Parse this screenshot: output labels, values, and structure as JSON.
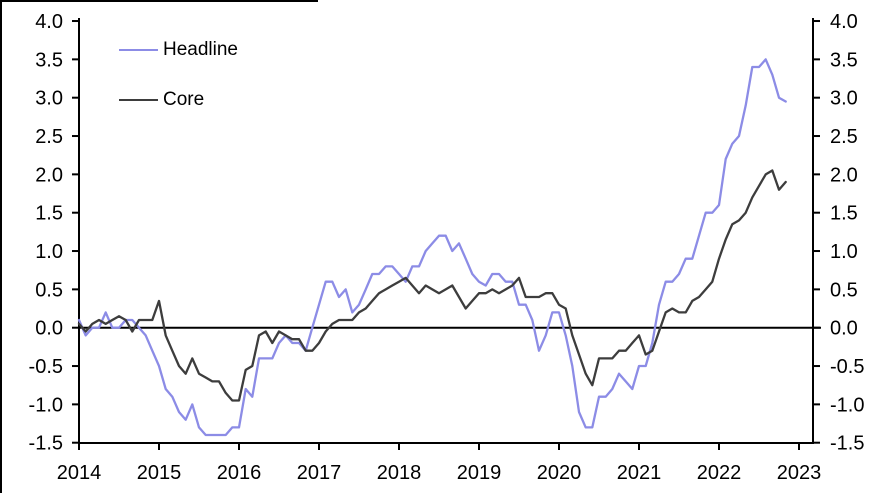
{
  "chart_data": {
    "type": "line",
    "title": "",
    "x_start": "2014-01",
    "x_end": "2022-11",
    "x_frequency": "monthly",
    "x_tick_labels": [
      "2014",
      "2015",
      "2016",
      "2017",
      "2018",
      "2019",
      "2020",
      "2021",
      "2022",
      "2023"
    ],
    "y_ticks": [
      4.0,
      3.5,
      3.0,
      2.5,
      2.0,
      1.5,
      1.0,
      0.5,
      0.0,
      -0.5,
      -1.0,
      -1.5
    ],
    "y_tick_labels": [
      "4.0",
      "3.5",
      "3.0",
      "2.5",
      "2.0",
      "1.5",
      "1.0",
      "0.5",
      "0.0",
      "-0.5",
      "-1.0",
      "-1.5"
    ],
    "ylim": [
      -1.5,
      4.0
    ],
    "grid": false,
    "zero_line": true,
    "y_axis_right_mirror": true,
    "legend_position": "top-left",
    "axis_color": "#000000",
    "series": [
      {
        "name": "Headline",
        "color": "#8c8ce6",
        "values": [
          0.1,
          -0.1,
          0.0,
          0.0,
          0.2,
          0.0,
          0.0,
          0.1,
          0.1,
          0.0,
          -0.1,
          -0.3,
          -0.5,
          -0.8,
          -0.9,
          -1.1,
          -1.2,
          -1.0,
          -1.3,
          -1.4,
          -1.4,
          -1.4,
          -1.4,
          -1.3,
          -1.3,
          -0.8,
          -0.9,
          -0.4,
          -0.4,
          -0.4,
          -0.2,
          -0.1,
          -0.2,
          -0.2,
          -0.3,
          0.0,
          0.3,
          0.6,
          0.6,
          0.4,
          0.5,
          0.2,
          0.3,
          0.5,
          0.7,
          0.7,
          0.8,
          0.8,
          0.7,
          0.6,
          0.8,
          0.8,
          1.0,
          1.1,
          1.2,
          1.2,
          1.0,
          1.1,
          0.9,
          0.7,
          0.6,
          0.55,
          0.7,
          0.7,
          0.6,
          0.6,
          0.3,
          0.3,
          0.1,
          -0.3,
          -0.1,
          0.2,
          0.2,
          -0.1,
          -0.5,
          -1.1,
          -1.3,
          -1.3,
          -0.9,
          -0.9,
          -0.8,
          -0.6,
          -0.7,
          -0.8,
          -0.5,
          -0.5,
          -0.2,
          0.3,
          0.6,
          0.6,
          0.7,
          0.9,
          0.9,
          1.2,
          1.5,
          1.5,
          1.6,
          2.2,
          2.4,
          2.5,
          2.9,
          3.4,
          3.4,
          3.5,
          3.3,
          3.0,
          2.95
        ]
      },
      {
        "name": "Core",
        "color": "#3d3d3d",
        "values": [
          0.05,
          -0.05,
          0.05,
          0.1,
          0.05,
          0.1,
          0.15,
          0.1,
          -0.05,
          0.1,
          0.1,
          0.1,
          0.35,
          -0.1,
          -0.3,
          -0.5,
          -0.6,
          -0.4,
          -0.6,
          -0.65,
          -0.7,
          -0.7,
          -0.85,
          -0.95,
          -0.95,
          -0.55,
          -0.5,
          -0.1,
          -0.05,
          -0.2,
          -0.05,
          -0.1,
          -0.15,
          -0.15,
          -0.3,
          -0.3,
          -0.2,
          -0.05,
          0.05,
          0.1,
          0.1,
          0.1,
          0.2,
          0.25,
          0.35,
          0.45,
          0.5,
          0.55,
          0.6,
          0.65,
          0.55,
          0.45,
          0.55,
          0.5,
          0.45,
          0.5,
          0.55,
          0.4,
          0.25,
          0.35,
          0.45,
          0.45,
          0.5,
          0.45,
          0.5,
          0.55,
          0.65,
          0.4,
          0.4,
          0.4,
          0.45,
          0.45,
          0.3,
          0.25,
          -0.1,
          -0.35,
          -0.6,
          -0.75,
          -0.4,
          -0.4,
          -0.4,
          -0.3,
          -0.3,
          -0.2,
          -0.1,
          -0.35,
          -0.3,
          -0.05,
          0.2,
          0.25,
          0.2,
          0.2,
          0.35,
          0.4,
          0.5,
          0.6,
          0.9,
          1.15,
          1.35,
          1.4,
          1.5,
          1.7,
          1.85,
          2.0,
          2.05,
          1.8,
          1.9
        ]
      }
    ]
  },
  "legend": {
    "items": [
      {
        "label": "Headline"
      },
      {
        "label": "Core"
      }
    ]
  }
}
